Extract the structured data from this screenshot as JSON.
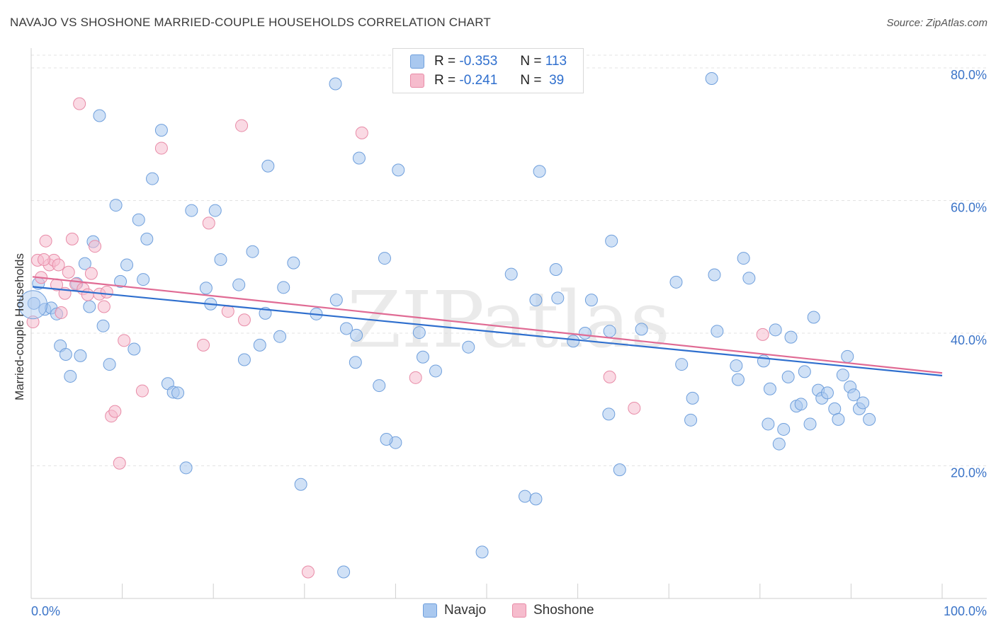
{
  "title": "NAVAJO VS SHOSHONE MARRIED-COUPLE HOUSEHOLDS CORRELATION CHART",
  "source": "Source: ZipAtlas.com",
  "watermark": "ZIPatlas",
  "legend": {
    "rows": [
      {
        "r_label": "R =",
        "r_value": "-0.353",
        "n_label": "N =",
        "n_value": "113",
        "color": "#a9c8ef",
        "border": "#6f9fdc"
      },
      {
        "r_label": "R =",
        "r_value": "-0.241",
        "n_label": "N =",
        "n_value": "39",
        "color": "#f6bccd",
        "border": "#e88ba7"
      }
    ]
  },
  "bottom_legend": [
    {
      "label": "Navajo",
      "color": "#a9c8ef",
      "border": "#6f9fdc"
    },
    {
      "label": "Shoshone",
      "color": "#f6bccd",
      "border": "#e88ba7"
    }
  ],
  "chart_data": {
    "type": "scatter",
    "title": "NAVAJO VS SHOSHONE MARRIED-COUPLE HOUSEHOLDS CORRELATION CHART",
    "xlabel": "",
    "ylabel": "Married-couple Households",
    "xlim": [
      0,
      100
    ],
    "ylim": [
      0,
      80
    ],
    "x_tick_labels": [
      "0.0%",
      "100.0%"
    ],
    "y_ticks": [
      20,
      40,
      60,
      80
    ],
    "y_tick_labels": [
      "20.0%",
      "40.0%",
      "60.0%",
      "80.0%"
    ],
    "grid": true,
    "legend_position": "top-center",
    "series": [
      {
        "name": "Navajo",
        "color": "#6f9fdc",
        "fill": "#a9c8ef",
        "trend": {
          "x": [
            0,
            100
          ],
          "y": [
            47.0,
            33.6
          ]
        },
        "points": [
          [
            0.3,
            44.5
          ],
          [
            0.8,
            47.5
          ],
          [
            1.5,
            43.6
          ],
          [
            2.2,
            43.8
          ],
          [
            2.8,
            42.9
          ],
          [
            3.2,
            38.1
          ],
          [
            3.8,
            36.8
          ],
          [
            4.3,
            33.5
          ],
          [
            5.0,
            47.5
          ],
          [
            5.4,
            36.6
          ],
          [
            5.9,
            50.5
          ],
          [
            6.4,
            44.0
          ],
          [
            6.8,
            53.8
          ],
          [
            7.5,
            72.8
          ],
          [
            7.9,
            41.1
          ],
          [
            8.6,
            35.3
          ],
          [
            9.3,
            59.3
          ],
          [
            9.8,
            47.8
          ],
          [
            10.5,
            50.3
          ],
          [
            11.3,
            37.6
          ],
          [
            11.8,
            57.1
          ],
          [
            12.3,
            48.1
          ],
          [
            12.7,
            54.2
          ],
          [
            13.3,
            63.3
          ],
          [
            14.3,
            70.6
          ],
          [
            15.0,
            32.4
          ],
          [
            15.6,
            31.1
          ],
          [
            16.1,
            31.0
          ],
          [
            17.0,
            19.7
          ],
          [
            17.6,
            58.5
          ],
          [
            19.2,
            46.8
          ],
          [
            19.7,
            44.4
          ],
          [
            20.2,
            58.5
          ],
          [
            20.8,
            51.1
          ],
          [
            22.8,
            47.3
          ],
          [
            23.4,
            36.0
          ],
          [
            24.3,
            52.3
          ],
          [
            25.1,
            38.2
          ],
          [
            25.7,
            43.0
          ],
          [
            26.0,
            65.2
          ],
          [
            27.3,
            39.5
          ],
          [
            27.7,
            46.9
          ],
          [
            28.8,
            50.6
          ],
          [
            29.6,
            17.2
          ],
          [
            31.3,
            42.9
          ],
          [
            33.4,
            77.6
          ],
          [
            33.5,
            45.0
          ],
          [
            34.6,
            40.7
          ],
          [
            35.6,
            35.6
          ],
          [
            35.7,
            39.7
          ],
          [
            36.0,
            66.4
          ],
          [
            38.2,
            32.1
          ],
          [
            38.8,
            51.3
          ],
          [
            40.0,
            23.5
          ],
          [
            40.3,
            64.6
          ],
          [
            42.6,
            40.1
          ],
          [
            43.0,
            36.4
          ],
          [
            44.4,
            34.3
          ],
          [
            48.0,
            37.9
          ],
          [
            49.5,
            7.0
          ],
          [
            52.7,
            48.9
          ],
          [
            54.2,
            15.4
          ],
          [
            55.4,
            45.0
          ],
          [
            55.8,
            64.4
          ],
          [
            57.6,
            49.6
          ],
          [
            57.8,
            45.3
          ],
          [
            59.5,
            38.8
          ],
          [
            60.8,
            40.0
          ],
          [
            61.5,
            45.0
          ],
          [
            63.4,
            27.8
          ],
          [
            63.7,
            53.9
          ],
          [
            64.6,
            19.4
          ],
          [
            67.0,
            40.6
          ],
          [
            70.8,
            47.7
          ],
          [
            71.4,
            35.3
          ],
          [
            72.4,
            26.9
          ],
          [
            72.6,
            30.2
          ],
          [
            75.0,
            48.8
          ],
          [
            75.3,
            40.3
          ],
          [
            77.4,
            35.1
          ],
          [
            77.6,
            33.0
          ],
          [
            78.2,
            51.3
          ],
          [
            78.8,
            48.3
          ],
          [
            80.4,
            35.8
          ],
          [
            80.9,
            26.3
          ],
          [
            81.1,
            31.6
          ],
          [
            81.7,
            40.5
          ],
          [
            82.1,
            23.3
          ],
          [
            82.6,
            25.5
          ],
          [
            83.1,
            33.4
          ],
          [
            83.4,
            39.4
          ],
          [
            84.0,
            29.0
          ],
          [
            84.5,
            29.3
          ],
          [
            84.9,
            34.2
          ],
          [
            85.5,
            26.3
          ],
          [
            85.9,
            42.4
          ],
          [
            86.4,
            31.4
          ],
          [
            86.8,
            30.2
          ],
          [
            87.4,
            31.0
          ],
          [
            88.2,
            28.6
          ],
          [
            88.6,
            27.0
          ],
          [
            89.1,
            33.7
          ],
          [
            89.6,
            36.5
          ],
          [
            89.9,
            31.9
          ],
          [
            90.3,
            30.7
          ],
          [
            90.9,
            28.6
          ],
          [
            91.3,
            29.5
          ],
          [
            92.0,
            27.0
          ],
          [
            34.3,
            4.0
          ],
          [
            74.7,
            78.4
          ],
          [
            63.5,
            40.3
          ],
          [
            39.0,
            24.0
          ],
          [
            55.4,
            15.0
          ]
        ]
      },
      {
        "name": "Shoshone",
        "color": "#e88ba7",
        "fill": "#f6bccd",
        "trend": {
          "x": [
            0,
            100
          ],
          "y": [
            48.5,
            34.0
          ]
        },
        "points": [
          [
            0.2,
            41.7
          ],
          [
            0.7,
            51.0
          ],
          [
            1.1,
            48.4
          ],
          [
            1.6,
            53.9
          ],
          [
            2.0,
            50.3
          ],
          [
            2.5,
            51.0
          ],
          [
            2.8,
            47.3
          ],
          [
            3.3,
            43.1
          ],
          [
            3.7,
            46.0
          ],
          [
            4.1,
            49.2
          ],
          [
            4.5,
            54.2
          ],
          [
            4.9,
            47.4
          ],
          [
            5.3,
            74.6
          ],
          [
            5.7,
            46.7
          ],
          [
            6.2,
            45.8
          ],
          [
            6.6,
            49.0
          ],
          [
            7.0,
            53.1
          ],
          [
            7.5,
            45.9
          ],
          [
            8.0,
            44.0
          ],
          [
            8.3,
            46.2
          ],
          [
            8.8,
            27.5
          ],
          [
            9.2,
            28.2
          ],
          [
            9.7,
            20.4
          ],
          [
            10.2,
            38.9
          ],
          [
            12.2,
            31.3
          ],
          [
            14.3,
            67.9
          ],
          [
            18.9,
            38.2
          ],
          [
            19.5,
            56.6
          ],
          [
            21.6,
            43.3
          ],
          [
            23.1,
            71.3
          ],
          [
            23.4,
            42.0
          ],
          [
            30.4,
            4.0
          ],
          [
            36.3,
            70.2
          ],
          [
            42.2,
            33.3
          ],
          [
            63.5,
            33.4
          ],
          [
            66.2,
            28.7
          ],
          [
            80.3,
            39.8
          ],
          [
            1.4,
            51.1
          ],
          [
            3.0,
            50.3
          ]
        ]
      }
    ]
  }
}
